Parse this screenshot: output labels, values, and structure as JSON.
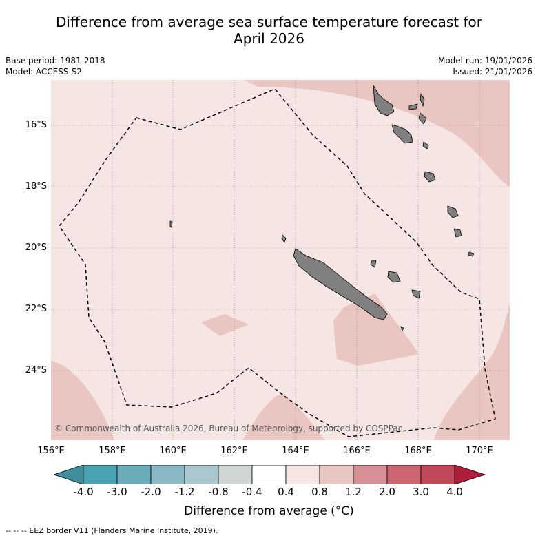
{
  "title_line1": "Difference from average sea surface temperature forecast for",
  "title_line2": "April 2026",
  "meta": {
    "base_period": "Base period: 1981-2018",
    "model": "Model: ACCESS-S2",
    "model_run": "Model run: 19/01/2026",
    "issued": "Issued: 21/01/2026"
  },
  "map": {
    "latitude_labels": [
      "16°S",
      "18°S",
      "20°S",
      "22°S",
      "24°S"
    ],
    "longitude_labels": [
      "156°E",
      "158°E",
      "160°E",
      "162°E",
      "164°E",
      "166°E",
      "168°E",
      "170°E"
    ],
    "copyright": "© Commonwealth of Australia 2026, Bureau of Meteorology, supported by COSPPac"
  },
  "colorbar": {
    "labels": [
      "-4.0",
      "-3.0",
      "-2.0",
      "-1.2",
      "-0.8",
      "-0.4",
      "0.4",
      "0.8",
      "1.2",
      "2.0",
      "3.0",
      "4.0"
    ],
    "colors": [
      "#4aa3b2",
      "#6aacba",
      "#8ab8c4",
      "#a9c8cd",
      "#d0d6d6",
      "#ffffff",
      "#f5e6e4",
      "#e9c6c1",
      "#d68f95",
      "#cb6670",
      "#c04859"
    ],
    "low_extend_color": "#3f8e9b",
    "high_extend_color": "#b01e3c",
    "title": "Difference from average (°C)"
  },
  "legend_note": "--  --  -- EEZ border V11 (Flanders Marine Institute, 2019)."
}
